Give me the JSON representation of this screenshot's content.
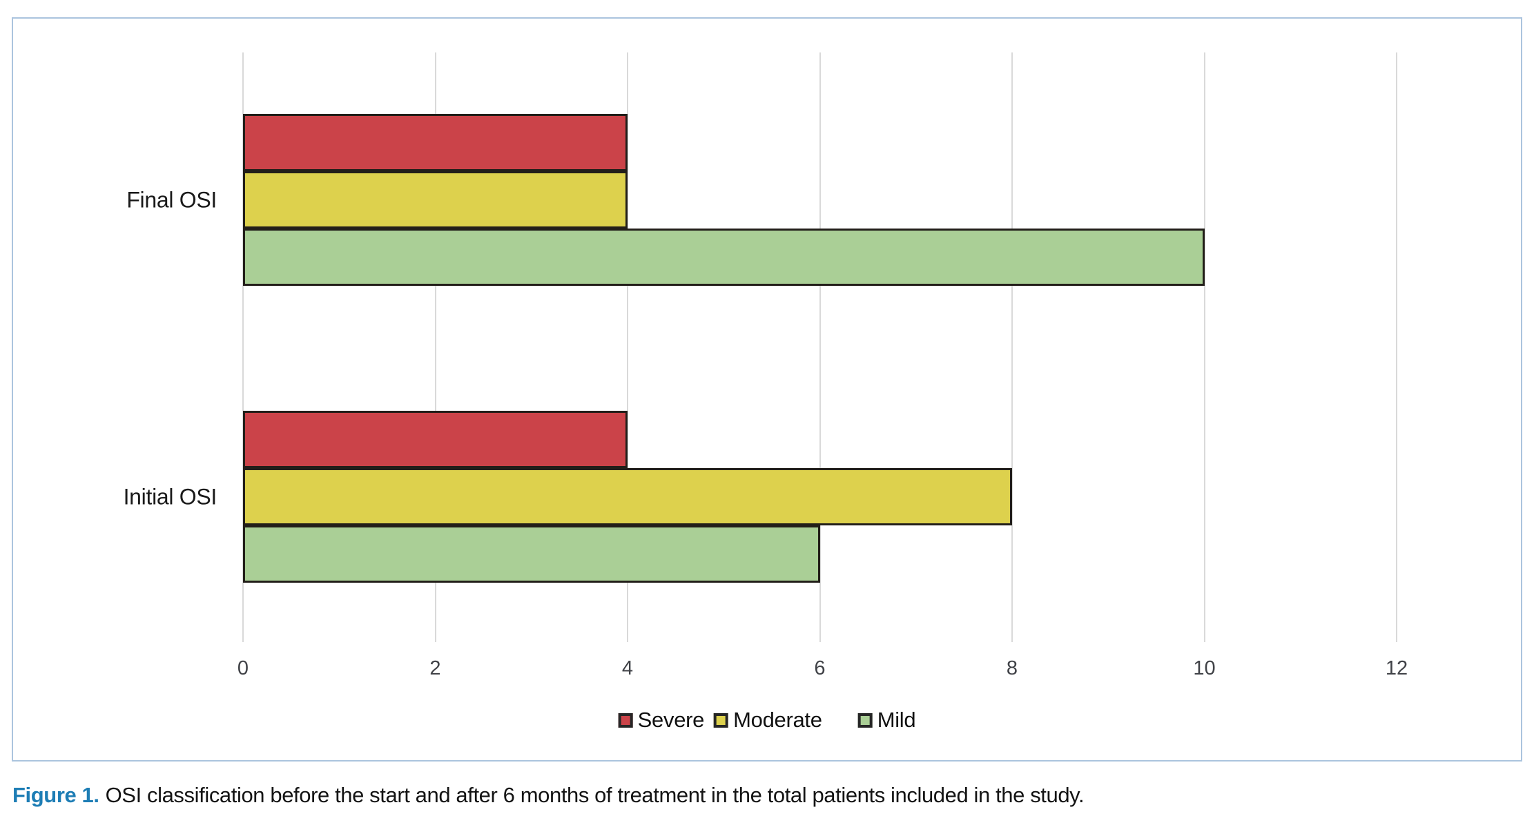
{
  "figure": {
    "caption_label": "Figure 1.",
    "caption_text": "OSI classification before the start and after 6 months of treatment in the total patients included in the study."
  },
  "chart_data": {
    "type": "bar",
    "orientation": "horizontal",
    "title": "",
    "xlabel": "",
    "ylabel": "",
    "categories": [
      "Final OSI",
      "Initial OSI"
    ],
    "series": [
      {
        "name": "Severe",
        "color": "#cb4349",
        "values": [
          4,
          4
        ]
      },
      {
        "name": "Moderate",
        "color": "#ddd14d",
        "values": [
          4,
          8
        ]
      },
      {
        "name": "Mild",
        "color": "#aacf96",
        "values": [
          10,
          6
        ]
      }
    ],
    "bar_order_top_to_bottom": [
      "Severe",
      "Moderate",
      "Mild"
    ],
    "xlim": [
      0,
      12
    ],
    "xticks": [
      0,
      2,
      4,
      6,
      8,
      10,
      12
    ],
    "grid": "vertical-gridlines",
    "legend": [
      "Severe",
      "Moderate",
      "Mild"
    ],
    "legend_position": "bottom-center",
    "colors": {
      "panel_border": "#abc4de",
      "gridline": "#d9d9d9",
      "bar_outline": "#221e19",
      "tick_text": "#404247",
      "caption_accent": "#1d7db5"
    }
  }
}
